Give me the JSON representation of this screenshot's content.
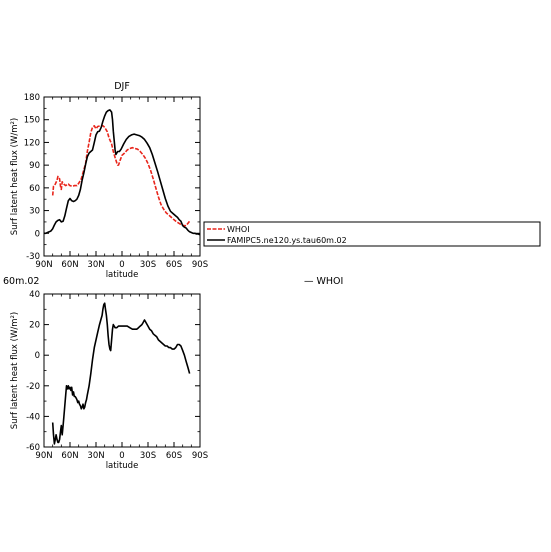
{
  "chart_data": [
    {
      "type": "line",
      "title": "DJF",
      "xlabel": "latitude",
      "ylabel": "Surf latent heat flux (W/m²)",
      "x_reversed": true,
      "xlim": [
        90,
        -90
      ],
      "ylim": [
        -30,
        180
      ],
      "x_ticks": [
        {
          "value": 90,
          "label": "90N"
        },
        {
          "value": 60,
          "label": "60N"
        },
        {
          "value": 30,
          "label": "30N"
        },
        {
          "value": 0,
          "label": "0"
        },
        {
          "value": -30,
          "label": "30S"
        },
        {
          "value": -60,
          "label": "60S"
        },
        {
          "value": -90,
          "label": "90S"
        }
      ],
      "y_ticks": [
        {
          "value": -30,
          "label": "-30"
        },
        {
          "value": 0,
          "label": "0"
        },
        {
          "value": 30,
          "label": "30"
        },
        {
          "value": 60,
          "label": "60"
        },
        {
          "value": 90,
          "label": "90"
        },
        {
          "value": 120,
          "label": "120"
        },
        {
          "value": 150,
          "label": "150"
        },
        {
          "value": 180,
          "label": "180"
        }
      ],
      "grid": false,
      "legend_position": "right",
      "series": [
        {
          "name": "WHOI",
          "color": "#e8251b",
          "dash": "dashed",
          "points": [
            [
              80,
              50
            ],
            [
              79,
              62
            ],
            [
              77,
              65
            ],
            [
              75,
              70
            ],
            [
              74,
              75
            ],
            [
              72,
              72
            ],
            [
              71,
              62
            ],
            [
              70,
              58
            ],
            [
              69,
              68
            ],
            [
              67,
              65
            ],
            [
              65,
              63
            ],
            [
              62,
              65
            ],
            [
              60,
              63
            ],
            [
              57,
              62
            ],
            [
              55,
              63
            ],
            [
              52,
              63
            ],
            [
              50,
              66
            ],
            [
              47,
              72
            ],
            [
              45,
              80
            ],
            [
              42,
              92
            ],
            [
              40,
              108
            ],
            [
              38,
              120
            ],
            [
              36,
              133
            ],
            [
              34,
              140
            ],
            [
              32,
              142
            ],
            [
              30,
              138
            ],
            [
              28,
              141
            ],
            [
              25,
              142
            ],
            [
              22,
              142
            ],
            [
              20,
              140
            ],
            [
              17,
              134
            ],
            [
              15,
              126
            ],
            [
              12,
              118
            ],
            [
              10,
              108
            ],
            [
              8,
              100
            ],
            [
              6,
              93
            ],
            [
              5,
              90
            ],
            [
              4,
              90
            ],
            [
              2,
              97
            ],
            [
              0,
              103
            ],
            [
              -3,
              106
            ],
            [
              -6,
              110
            ],
            [
              -9,
              112
            ],
            [
              -12,
              113
            ],
            [
              -15,
              112
            ],
            [
              -18,
              111
            ],
            [
              -21,
              108
            ],
            [
              -24,
              104
            ],
            [
              -27,
              99
            ],
            [
              -30,
              92
            ],
            [
              -33,
              83
            ],
            [
              -36,
              72
            ],
            [
              -39,
              60
            ],
            [
              -42,
              48
            ],
            [
              -45,
              38
            ],
            [
              -48,
              32
            ],
            [
              -51,
              27
            ],
            [
              -54,
              24
            ],
            [
              -57,
              21
            ],
            [
              -60,
              18
            ],
            [
              -63,
              15
            ],
            [
              -66,
              13
            ],
            [
              -69,
              11
            ],
            [
              -72,
              10
            ],
            [
              -74,
              10
            ],
            [
              -76,
              13
            ],
            [
              -78,
              16
            ]
          ]
        },
        {
          "name": "FAMIPC5.ne120.ys.tau60m.02",
          "color": "#000000",
          "dash": "solid",
          "points": [
            [
              90,
              0
            ],
            [
              88,
              0
            ],
            [
              86,
              1
            ],
            [
              84,
              2
            ],
            [
              82,
              3
            ],
            [
              80,
              6
            ],
            [
              78,
              11
            ],
            [
              76,
              15
            ],
            [
              74,
              17
            ],
            [
              72,
              18
            ],
            [
              70,
              15
            ],
            [
              68,
              16
            ],
            [
              66,
              23
            ],
            [
              64,
              33
            ],
            [
              62,
              43
            ],
            [
              60,
              46
            ],
            [
              58,
              43
            ],
            [
              56,
              42
            ],
            [
              54,
              43
            ],
            [
              52,
              45
            ],
            [
              50,
              50
            ],
            [
              48,
              58
            ],
            [
              46,
              70
            ],
            [
              44,
              80
            ],
            [
              42,
              91
            ],
            [
              40,
              101
            ],
            [
              38,
              106
            ],
            [
              36,
              108
            ],
            [
              34,
              110
            ],
            [
              32,
              120
            ],
            [
              30,
              130
            ],
            [
              28,
              134
            ],
            [
              26,
              135
            ],
            [
              24,
              140
            ],
            [
              22,
              148
            ],
            [
              20,
              155
            ],
            [
              18,
              160
            ],
            [
              16,
              162
            ],
            [
              14,
              163
            ],
            [
              12,
              160
            ],
            [
              11,
              150
            ],
            [
              10,
              135
            ],
            [
              8,
              110
            ],
            [
              7,
              104
            ],
            [
              5,
              108
            ],
            [
              3,
              108
            ],
            [
              1,
              111
            ],
            [
              -2,
              118
            ],
            [
              -5,
              124
            ],
            [
              -8,
              128
            ],
            [
              -11,
              130
            ],
            [
              -14,
              131
            ],
            [
              -17,
              130
            ],
            [
              -20,
              129
            ],
            [
              -23,
              127
            ],
            [
              -26,
              124
            ],
            [
              -29,
              119
            ],
            [
              -32,
              113
            ],
            [
              -35,
              104
            ],
            [
              -38,
              93
            ],
            [
              -41,
              82
            ],
            [
              -44,
              70
            ],
            [
              -47,
              58
            ],
            [
              -50,
              46
            ],
            [
              -53,
              36
            ],
            [
              -56,
              29
            ],
            [
              -59,
              26
            ],
            [
              -62,
              23
            ],
            [
              -64,
              21
            ],
            [
              -66,
              18
            ],
            [
              -68,
              16
            ],
            [
              -70,
              10
            ],
            [
              -72,
              8
            ],
            [
              -74,
              7
            ],
            [
              -76,
              4
            ],
            [
              -78,
              2
            ],
            [
              -80,
              1
            ],
            [
              -82,
              0
            ],
            [
              -84,
              0
            ],
            [
              -86,
              -1
            ],
            [
              -88,
              -1
            ],
            [
              -90,
              -2
            ]
          ]
        }
      ]
    },
    {
      "type": "line",
      "title": "60m.02",
      "legend_label": "— WHOI",
      "xlabel": "latitude",
      "ylabel": "Surf latent heat flux (W/m²)",
      "x_reversed": true,
      "xlim": [
        90,
        -90
      ],
      "ylim": [
        -60,
        40
      ],
      "x_ticks": [
        {
          "value": 90,
          "label": "90N"
        },
        {
          "value": 60,
          "label": "60N"
        },
        {
          "value": 30,
          "label": "30N"
        },
        {
          "value": 0,
          "label": "0"
        },
        {
          "value": -30,
          "label": "30S"
        },
        {
          "value": -60,
          "label": "60S"
        },
        {
          "value": -90,
          "label": "90S"
        }
      ],
      "y_ticks": [
        {
          "value": -60,
          "label": "-60"
        },
        {
          "value": -40,
          "label": "-40"
        },
        {
          "value": -20,
          "label": "-20"
        },
        {
          "value": 0,
          "label": "0"
        },
        {
          "value": 20,
          "label": "20"
        },
        {
          "value": 40,
          "label": "40"
        }
      ],
      "grid": false,
      "series": [
        {
          "color": "#000000",
          "dash": "solid",
          "points": [
            [
              80,
              -44
            ],
            [
              79,
              -52
            ],
            [
              78,
              -58
            ],
            [
              77,
              -55
            ],
            [
              76,
              -52
            ],
            [
              75,
              -55
            ],
            [
              74,
              -57
            ],
            [
              73,
              -57
            ],
            [
              72,
              -55
            ],
            [
              71,
              -50
            ],
            [
              70,
              -46
            ],
            [
              69,
              -52
            ],
            [
              68,
              -46
            ],
            [
              67,
              -40
            ],
            [
              66,
              -33
            ],
            [
              65,
              -26
            ],
            [
              64,
              -20
            ],
            [
              63,
              -22
            ],
            [
              62,
              -20
            ],
            [
              61,
              -22
            ],
            [
              60,
              -21
            ],
            [
              59,
              -23
            ],
            [
              58,
              -21
            ],
            [
              57,
              -26
            ],
            [
              56,
              -24
            ],
            [
              55,
              -27
            ],
            [
              54,
              -27
            ],
            [
              53,
              -28
            ],
            [
              52,
              -29
            ],
            [
              51,
              -31
            ],
            [
              50,
              -30
            ],
            [
              49,
              -32
            ],
            [
              48,
              -33
            ],
            [
              47,
              -35
            ],
            [
              46,
              -34
            ],
            [
              45,
              -32
            ],
            [
              44,
              -35
            ],
            [
              43,
              -34
            ],
            [
              42,
              -31
            ],
            [
              41,
              -29
            ],
            [
              40,
              -26
            ],
            [
              38,
              -20
            ],
            [
              36,
              -12
            ],
            [
              34,
              -3
            ],
            [
              32,
              5
            ],
            [
              30,
              10
            ],
            [
              28,
              15
            ],
            [
              26,
              20
            ],
            [
              24,
              24
            ],
            [
              23,
              26
            ],
            [
              22,
              30
            ],
            [
              21,
              33
            ],
            [
              20,
              34
            ],
            [
              19,
              30
            ],
            [
              18,
              26
            ],
            [
              17,
              20
            ],
            [
              16,
              13
            ],
            [
              15,
              7
            ],
            [
              14,
              4
            ],
            [
              13,
              3
            ],
            [
              12,
              10
            ],
            [
              11,
              17
            ],
            [
              10,
              20
            ],
            [
              9,
              19
            ],
            [
              8,
              18
            ],
            [
              7,
              18
            ],
            [
              6,
              18
            ],
            [
              4,
              19
            ],
            [
              2,
              19
            ],
            [
              0,
              19
            ],
            [
              -3,
              19
            ],
            [
              -6,
              19
            ],
            [
              -9,
              18
            ],
            [
              -12,
              17
            ],
            [
              -15,
              17
            ],
            [
              -17,
              17
            ],
            [
              -19,
              18
            ],
            [
              -21,
              19
            ],
            [
              -23,
              20
            ],
            [
              -24,
              21
            ],
            [
              -25,
              22
            ],
            [
              -26,
              23
            ],
            [
              -27,
              22
            ],
            [
              -28,
              21
            ],
            [
              -30,
              19
            ],
            [
              -32,
              17
            ],
            [
              -34,
              16
            ],
            [
              -36,
              14
            ],
            [
              -38,
              13
            ],
            [
              -40,
              12
            ],
            [
              -42,
              10
            ],
            [
              -44,
              9
            ],
            [
              -46,
              8
            ],
            [
              -48,
              7
            ],
            [
              -50,
              6
            ],
            [
              -52,
              6
            ],
            [
              -54,
              5
            ],
            [
              -56,
              5
            ],
            [
              -58,
              4
            ],
            [
              -60,
              4
            ],
            [
              -62,
              5
            ],
            [
              -64,
              7
            ],
            [
              -66,
              7
            ],
            [
              -68,
              6
            ],
            [
              -70,
              3
            ],
            [
              -72,
              0
            ],
            [
              -74,
              -4
            ],
            [
              -76,
              -8
            ],
            [
              -78,
              -12
            ]
          ]
        }
      ]
    }
  ]
}
